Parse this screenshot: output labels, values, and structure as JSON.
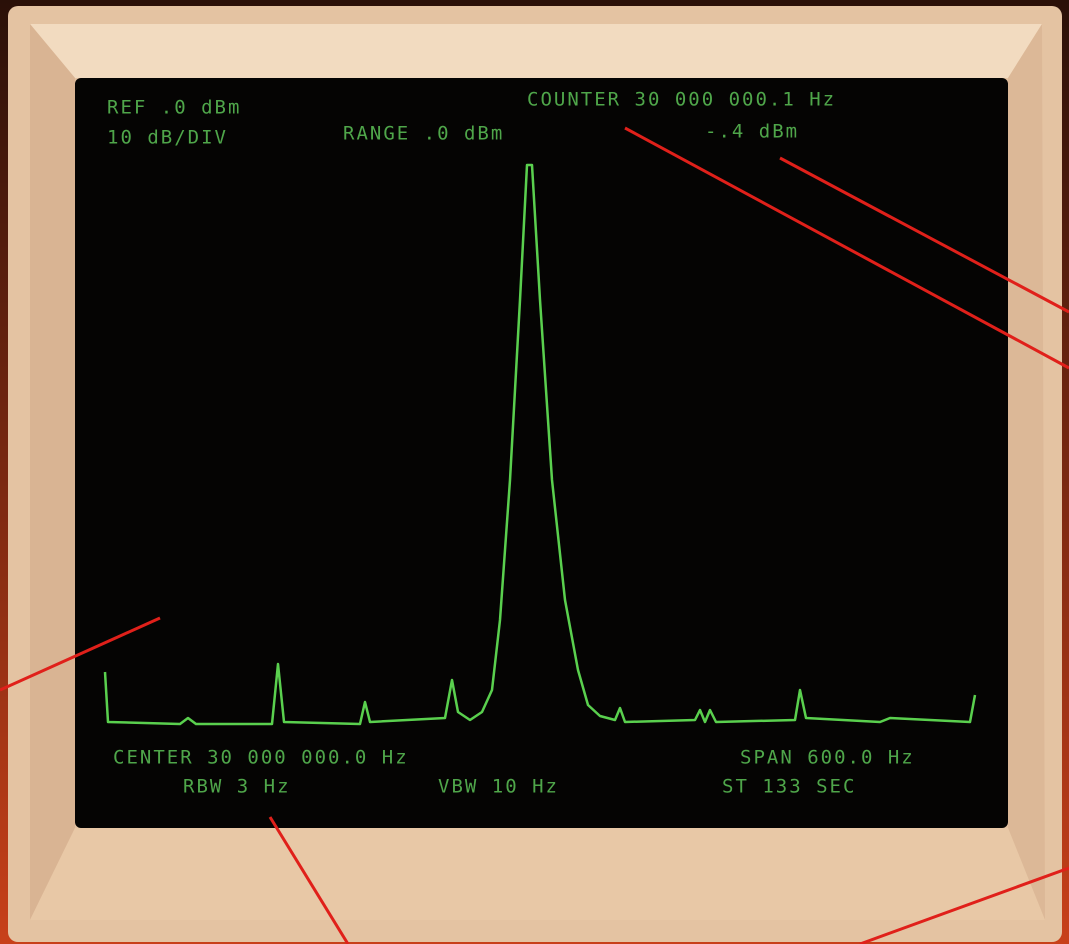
{
  "screen": {
    "ref": "REF .0 dBm",
    "scale": "10 dB/DIV",
    "range": "RANGE .0 dBm",
    "counter_frequency": "COUNTER 30 000 000.1 Hz",
    "counter_level": "-.4 dBm",
    "center": "CENTER 30 000 000.0 Hz",
    "span": "SPAN 600.0 Hz",
    "rbw": "RBW 3 Hz",
    "vbw": "VBW 10 Hz",
    "sweep_time": "ST 133 SEC"
  }
}
